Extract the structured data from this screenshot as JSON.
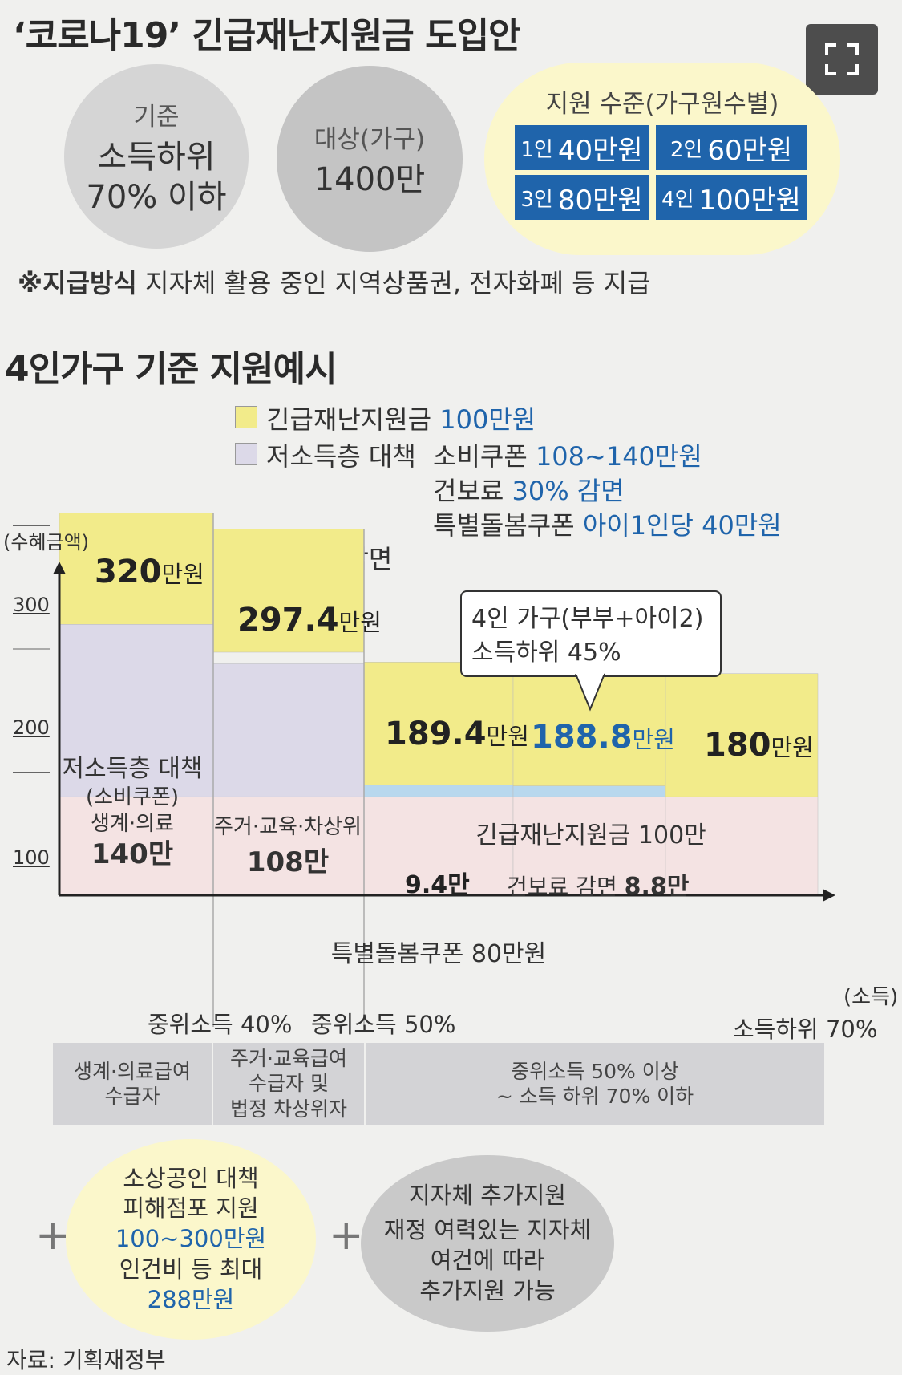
{
  "title": "‘코로나19’ 긴급재난지원금 도입안",
  "summary": {
    "criteria_label": "기준",
    "criteria_value_1": "소득하위",
    "criteria_value_2": "70% 이하",
    "target_label": "대상(가구)",
    "target_value": "1400만",
    "support_label": "지원 수준(가구원수별)",
    "tags": [
      {
        "n": "1인",
        "v": "40만원"
      },
      {
        "n": "2인",
        "v": "60만원"
      },
      {
        "n": "3인",
        "v": "80만원"
      },
      {
        "n": "4인",
        "v": "100만원"
      }
    ]
  },
  "note": {
    "bold": "※지급방식",
    "text": " 지자체 활용 중인 지역상품권, 전자화폐 등 지급"
  },
  "section_title": "4인가구 기준 지원예시",
  "legend": {
    "item1": "긴급재난지원금",
    "item1_value": "100만원",
    "item2": "저소득층 대책",
    "item2_line1_label": "소비쿠폰",
    "item2_line1_value": "108~140만원",
    "item2_line2_label": "건보료",
    "item2_line2_value": "30% 감면",
    "item2_line3_label": "특별돌봄쿠폰",
    "item2_line3_value": "아이1인당 40만원",
    "item3": "건보료 감면"
  },
  "colors": {
    "emergency": "#f2eb8a",
    "low_income": "#dcd9e8",
    "insurance": "#b8d8ee",
    "care_coupon": "#f4e3e3",
    "accent_blue": "#1f64ab",
    "tag_blue": "#1f64ab"
  },
  "chart_data": {
    "type": "area",
    "ylabel": "(수혜금액)",
    "xlabel": "(소득)",
    "yticks": [
      "300",
      "200",
      "100"
    ],
    "ytick_values": [
      300,
      200,
      100
    ],
    "x_labels": [
      "중위소득 40%",
      "중위소득 50%",
      "소득하위 70%"
    ],
    "segments": [
      {
        "name": "생계·의료급여 수급자",
        "total": 320,
        "care_coupon": 80,
        "low_income": 140,
        "insurance": 0,
        "emergency": 100
      },
      {
        "name": "주거·교육급여 수급자 및 법정 차상위자",
        "total": 297.4,
        "care_coupon": 80,
        "low_income": 108,
        "insurance": 9.4,
        "emergency": 100
      },
      {
        "name": "중위소득 50% 이상",
        "total": 189.4,
        "care_coupon": 80,
        "low_income": 0,
        "insurance": 9.4,
        "emergency": 100
      },
      {
        "name": "4인 가구 소득하위 45%",
        "total": 188.8,
        "care_coupon": 80,
        "low_income": 0,
        "insurance": 8.8,
        "emergency": 100
      },
      {
        "name": "소득하위 70%",
        "total": 180,
        "care_coupon": 80,
        "low_income": 0,
        "insurance": 0,
        "emergency": 100
      }
    ],
    "total_labels": [
      {
        "num": "320",
        "unit": "만원"
      },
      {
        "num": "297.4",
        "unit": "만원"
      },
      {
        "num": "189.4",
        "unit": "만원"
      },
      {
        "num": "188.8",
        "unit": "만원"
      },
      {
        "num": "180",
        "unit": "만원"
      }
    ],
    "inner_labels": {
      "seg1_line1": "저소득층 대책",
      "seg1_line2": "(소비쿠폰)",
      "seg1_line3": "생계·의료",
      "seg1_value": "140만",
      "seg2_line1": "주거·교육·차상위",
      "seg2_value": "108만",
      "emergency": "긴급재난지원금 100만",
      "ins1": "9.4만",
      "ins2_label": "건보료 감면",
      "ins2_value": "8.8만",
      "care": "특별돌봄쿠폰 80만원"
    },
    "callout_line1": "4인 가구(부부+아이2)",
    "callout_line2": "소득하위 45%",
    "bands": [
      "생계·의료급여\n수급자",
      "주거·교육급여\n수급자 및\n법정 차상위자",
      "중위소득 50% 이상\n~ 소득 하위 70% 이하"
    ]
  },
  "extras": {
    "plus": "+",
    "small_biz_title": "소상공인 대책",
    "small_biz_line1": "피해점포 지원",
    "small_biz_line2": "100~300만원",
    "small_biz_line3": "인건비 등 최대",
    "small_biz_line4": "288만원",
    "local_title": "지자체 추가지원",
    "local_line1": "재정 여력있는 지자체",
    "local_line2": "여건에 따라",
    "local_line3": "추가지원 가능"
  },
  "source": "자료: 기획재정부"
}
